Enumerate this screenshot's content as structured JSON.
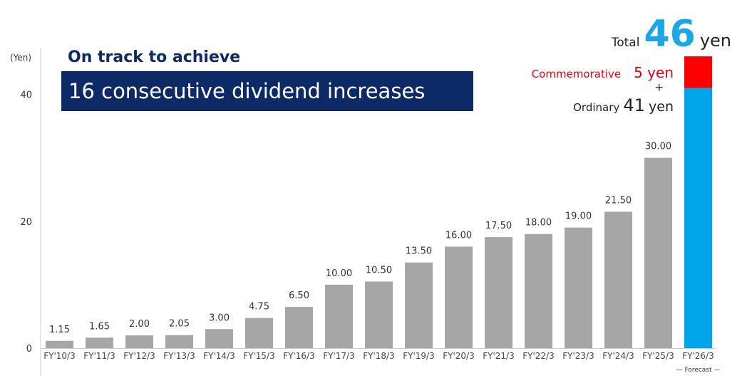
{
  "header": {
    "subtitle": "On track to achieve",
    "title": "16 consecutive dividend increases"
  },
  "callout": {
    "total_label": "Total",
    "total_value": "46",
    "total_unit": "yen",
    "commemorative_label": "Commemorative",
    "commemorative_value": "5 yen",
    "plus": "+",
    "ordinary_label": "Ordinary",
    "ordinary_value": "41",
    "ordinary_unit": "yen"
  },
  "chart_data": {
    "type": "bar",
    "ylabel": "(Yen)",
    "ylim": [
      0,
      46
    ],
    "yticks": [
      0,
      20,
      40
    ],
    "grid": false,
    "categories": [
      "FY'10/3",
      "FY'11/3",
      "FY'12/3",
      "FY'13/3",
      "FY'14/3",
      "FY'15/3",
      "FY'16/3",
      "FY'17/3",
      "FY'18/3",
      "FY'19/3",
      "FY'20/3",
      "FY'21/3",
      "FY'22/3",
      "FY'23/3",
      "FY'24/3",
      "FY'25/3",
      "FY'26/3"
    ],
    "values": [
      1.15,
      1.65,
      2.0,
      2.05,
      3.0,
      4.75,
      6.5,
      10.0,
      10.5,
      13.5,
      16.0,
      17.5,
      18.0,
      19.0,
      21.5,
      30.0,
      null
    ],
    "data_labels": [
      "1.15",
      "1.65",
      "2.00",
      "2.05",
      "3.00",
      "4.75",
      "6.50",
      "10.00",
      "10.50",
      "13.50",
      "16.00",
      "17.50",
      "18.00",
      "19.00",
      "21.50",
      "30.00",
      ""
    ],
    "forecast": {
      "category": "FY'26/3",
      "ordinary": 41,
      "commemorative": 5,
      "total": 46,
      "label": "Forecast"
    },
    "colors": {
      "actual": "#a6a6a6",
      "ordinary": "#00a6e9",
      "commemorative": "#ff0000"
    }
  }
}
